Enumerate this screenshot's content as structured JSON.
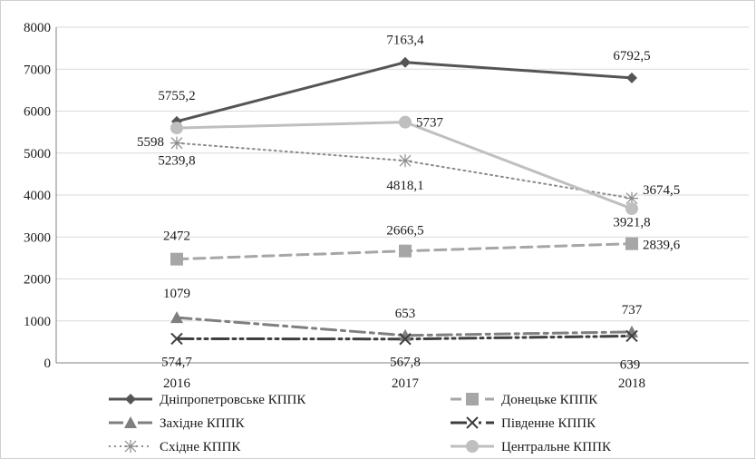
{
  "chart_data": {
    "type": "line",
    "title": "",
    "xlabel": "",
    "ylabel": "",
    "categories": [
      "2016",
      "2017",
      "2018"
    ],
    "ylim": [
      0,
      8000
    ],
    "yticks": [
      0,
      1000,
      2000,
      3000,
      4000,
      5000,
      6000,
      7000,
      8000
    ],
    "grid": "horizontal",
    "legend_position": "bottom",
    "series": [
      {
        "name": "Дніпропетровське КППК",
        "values": [
          5755.2,
          7163.4,
          6792.5
        ],
        "labels": [
          "5755,2",
          "7163,4",
          "6792,5"
        ],
        "color": "#555555",
        "dash": "solid",
        "marker": "diamond"
      },
      {
        "name": "Донецьке КППК",
        "values": [
          2472,
          2666.5,
          2839.6
        ],
        "labels": [
          "2472",
          "2666,5",
          "2839,6"
        ],
        "color": "#a6a6a6",
        "dash": "dash",
        "marker": "square"
      },
      {
        "name": "Західне КППК",
        "values": [
          1079,
          653,
          737
        ],
        "labels": [
          "1079",
          "653",
          "737"
        ],
        "color": "#7f7f7f",
        "dash": "dashdot",
        "marker": "triangle"
      },
      {
        "name": "Південне КППК",
        "values": [
          574.7,
          567.8,
          639
        ],
        "labels": [
          "574,7",
          "567,8",
          "639"
        ],
        "color": "#3f3f3f",
        "dash": "longdashdotdot",
        "marker": "x"
      },
      {
        "name": "Східне КППК",
        "values": [
          5239.8,
          4818.1,
          3921.8
        ],
        "labels": [
          "5239,8",
          "4818,1",
          "3921,8"
        ],
        "color": "#8c8c8c",
        "dash": "dot",
        "marker": "star"
      },
      {
        "name": "Центральне КППК",
        "values": [
          5598,
          5737,
          3674.5
        ],
        "labels": [
          "5598",
          "5737",
          "3674,5"
        ],
        "color": "#bfbfbf",
        "dash": "solid",
        "marker": "circle"
      }
    ]
  }
}
